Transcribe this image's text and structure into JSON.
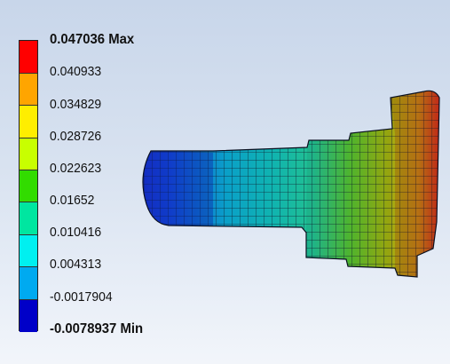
{
  "legend": {
    "max_value": "0.047036",
    "max_tag": "Max",
    "min_value": "-0.0078937",
    "min_tag": "Min",
    "levels": [
      "0.047036 Max",
      "0.040933",
      "0.034829",
      "0.028726",
      "0.022623",
      "0.01652",
      "0.010416",
      "0.004313",
      "-0.0017904",
      "-0.0078937 Min"
    ],
    "colors": [
      "#ff0000",
      "#ffa500",
      "#ffee00",
      "#c8ff00",
      "#32dc00",
      "#00e6a0",
      "#00f0f0",
      "#00aaf0",
      "#0050e6",
      "#0000c8"
    ]
  }
}
